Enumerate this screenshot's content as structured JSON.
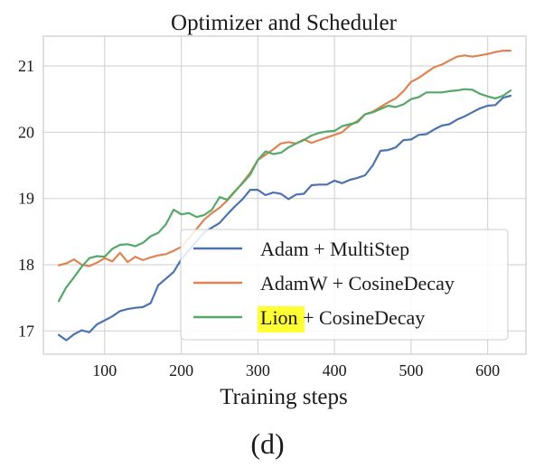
{
  "chart_data": {
    "type": "line",
    "title": "Optimizer and Scheduler",
    "xlabel": "Training steps",
    "ylabel": "",
    "caption": "(d)",
    "xlim": [
      20,
      650
    ],
    "ylim": [
      16.65,
      21.45
    ],
    "xticks": [
      100,
      200,
      300,
      400,
      500,
      600
    ],
    "yticks": [
      17,
      18,
      19,
      20,
      21
    ],
    "grid": true,
    "legend_position": "bottom-right",
    "series": [
      {
        "name": "Adam + MultiStep",
        "color": "#4c72b0",
        "x": [
          40,
          50,
          60,
          70,
          80,
          90,
          100,
          110,
          120,
          130,
          140,
          150,
          160,
          170,
          180,
          190,
          200,
          210,
          220,
          230,
          240,
          250,
          260,
          270,
          280,
          290,
          300,
          310,
          320,
          330,
          340,
          350,
          360,
          370,
          380,
          390,
          400,
          410,
          420,
          430,
          440,
          450,
          460,
          470,
          480,
          490,
          500,
          510,
          520,
          530,
          540,
          550,
          560,
          570,
          580,
          590,
          600,
          610,
          620,
          630
        ],
        "y": [
          16.94,
          16.86,
          16.95,
          17.01,
          16.98,
          17.1,
          17.16,
          17.22,
          17.3,
          17.33,
          17.35,
          17.36,
          17.42,
          17.69,
          17.79,
          17.89,
          18.08,
          18.22,
          18.35,
          18.49,
          18.56,
          18.63,
          18.76,
          18.88,
          18.99,
          19.13,
          19.13,
          19.05,
          19.09,
          19.07,
          18.99,
          19.06,
          19.07,
          19.2,
          19.21,
          19.21,
          19.27,
          19.23,
          19.28,
          19.31,
          19.35,
          19.5,
          19.72,
          19.73,
          19.77,
          19.88,
          19.89,
          19.96,
          19.97,
          20.04,
          20.1,
          20.12,
          20.19,
          20.24,
          20.3,
          20.36,
          20.4,
          20.41,
          20.52,
          20.55
        ]
      },
      {
        "name": "AdamW + CosineDecay",
        "color": "#dd8452",
        "x": [
          40,
          50,
          60,
          70,
          80,
          90,
          100,
          110,
          120,
          130,
          140,
          150,
          160,
          170,
          180,
          190,
          200,
          210,
          220,
          230,
          240,
          250,
          260,
          270,
          280,
          290,
          300,
          310,
          320,
          330,
          340,
          350,
          360,
          370,
          380,
          390,
          400,
          410,
          420,
          430,
          440,
          450,
          460,
          470,
          480,
          490,
          500,
          510,
          520,
          530,
          540,
          550,
          560,
          570,
          580,
          590,
          600,
          610,
          620,
          630
        ],
        "y": [
          17.99,
          18.02,
          18.08,
          18.0,
          17.98,
          18.03,
          18.1,
          18.05,
          18.18,
          18.04,
          18.12,
          18.07,
          18.11,
          18.14,
          18.16,
          18.21,
          18.27,
          18.4,
          18.54,
          18.68,
          18.78,
          18.86,
          18.97,
          19.1,
          19.24,
          19.39,
          19.58,
          19.66,
          19.74,
          19.83,
          19.85,
          19.83,
          19.89,
          19.84,
          19.88,
          19.92,
          19.96,
          20.0,
          20.1,
          20.17,
          20.27,
          20.31,
          20.38,
          20.45,
          20.51,
          20.62,
          20.76,
          20.82,
          20.9,
          20.98,
          21.02,
          21.08,
          21.14,
          21.16,
          21.14,
          21.16,
          21.18,
          21.21,
          21.23,
          21.23
        ]
      },
      {
        "name": "Lion + CosineDecay",
        "name_highlight": "Lion",
        "name_rest": " + CosineDecay",
        "highlight_color": "#ffff33",
        "color": "#55a868",
        "x": [
          40,
          50,
          60,
          70,
          80,
          90,
          100,
          110,
          120,
          130,
          140,
          150,
          160,
          170,
          180,
          190,
          200,
          210,
          220,
          230,
          240,
          250,
          260,
          270,
          280,
          290,
          300,
          310,
          320,
          330,
          340,
          350,
          360,
          370,
          380,
          390,
          400,
          410,
          420,
          430,
          440,
          450,
          460,
          470,
          480,
          490,
          500,
          510,
          520,
          530,
          540,
          550,
          560,
          570,
          580,
          590,
          600,
          610,
          620,
          630
        ],
        "y": [
          17.45,
          17.66,
          17.81,
          17.97,
          18.1,
          18.13,
          18.12,
          18.24,
          18.3,
          18.31,
          18.28,
          18.33,
          18.43,
          18.48,
          18.61,
          18.83,
          18.76,
          18.78,
          18.72,
          18.75,
          18.83,
          19.02,
          18.98,
          19.11,
          19.23,
          19.36,
          19.58,
          19.71,
          19.67,
          19.69,
          19.77,
          19.83,
          19.88,
          19.95,
          19.99,
          20.01,
          20.02,
          20.09,
          20.12,
          20.15,
          20.27,
          20.3,
          20.35,
          20.4,
          20.38,
          20.42,
          20.5,
          20.53,
          20.6,
          20.6,
          20.6,
          20.62,
          20.63,
          20.65,
          20.64,
          20.58,
          20.54,
          20.51,
          20.55,
          20.63
        ]
      }
    ]
  }
}
